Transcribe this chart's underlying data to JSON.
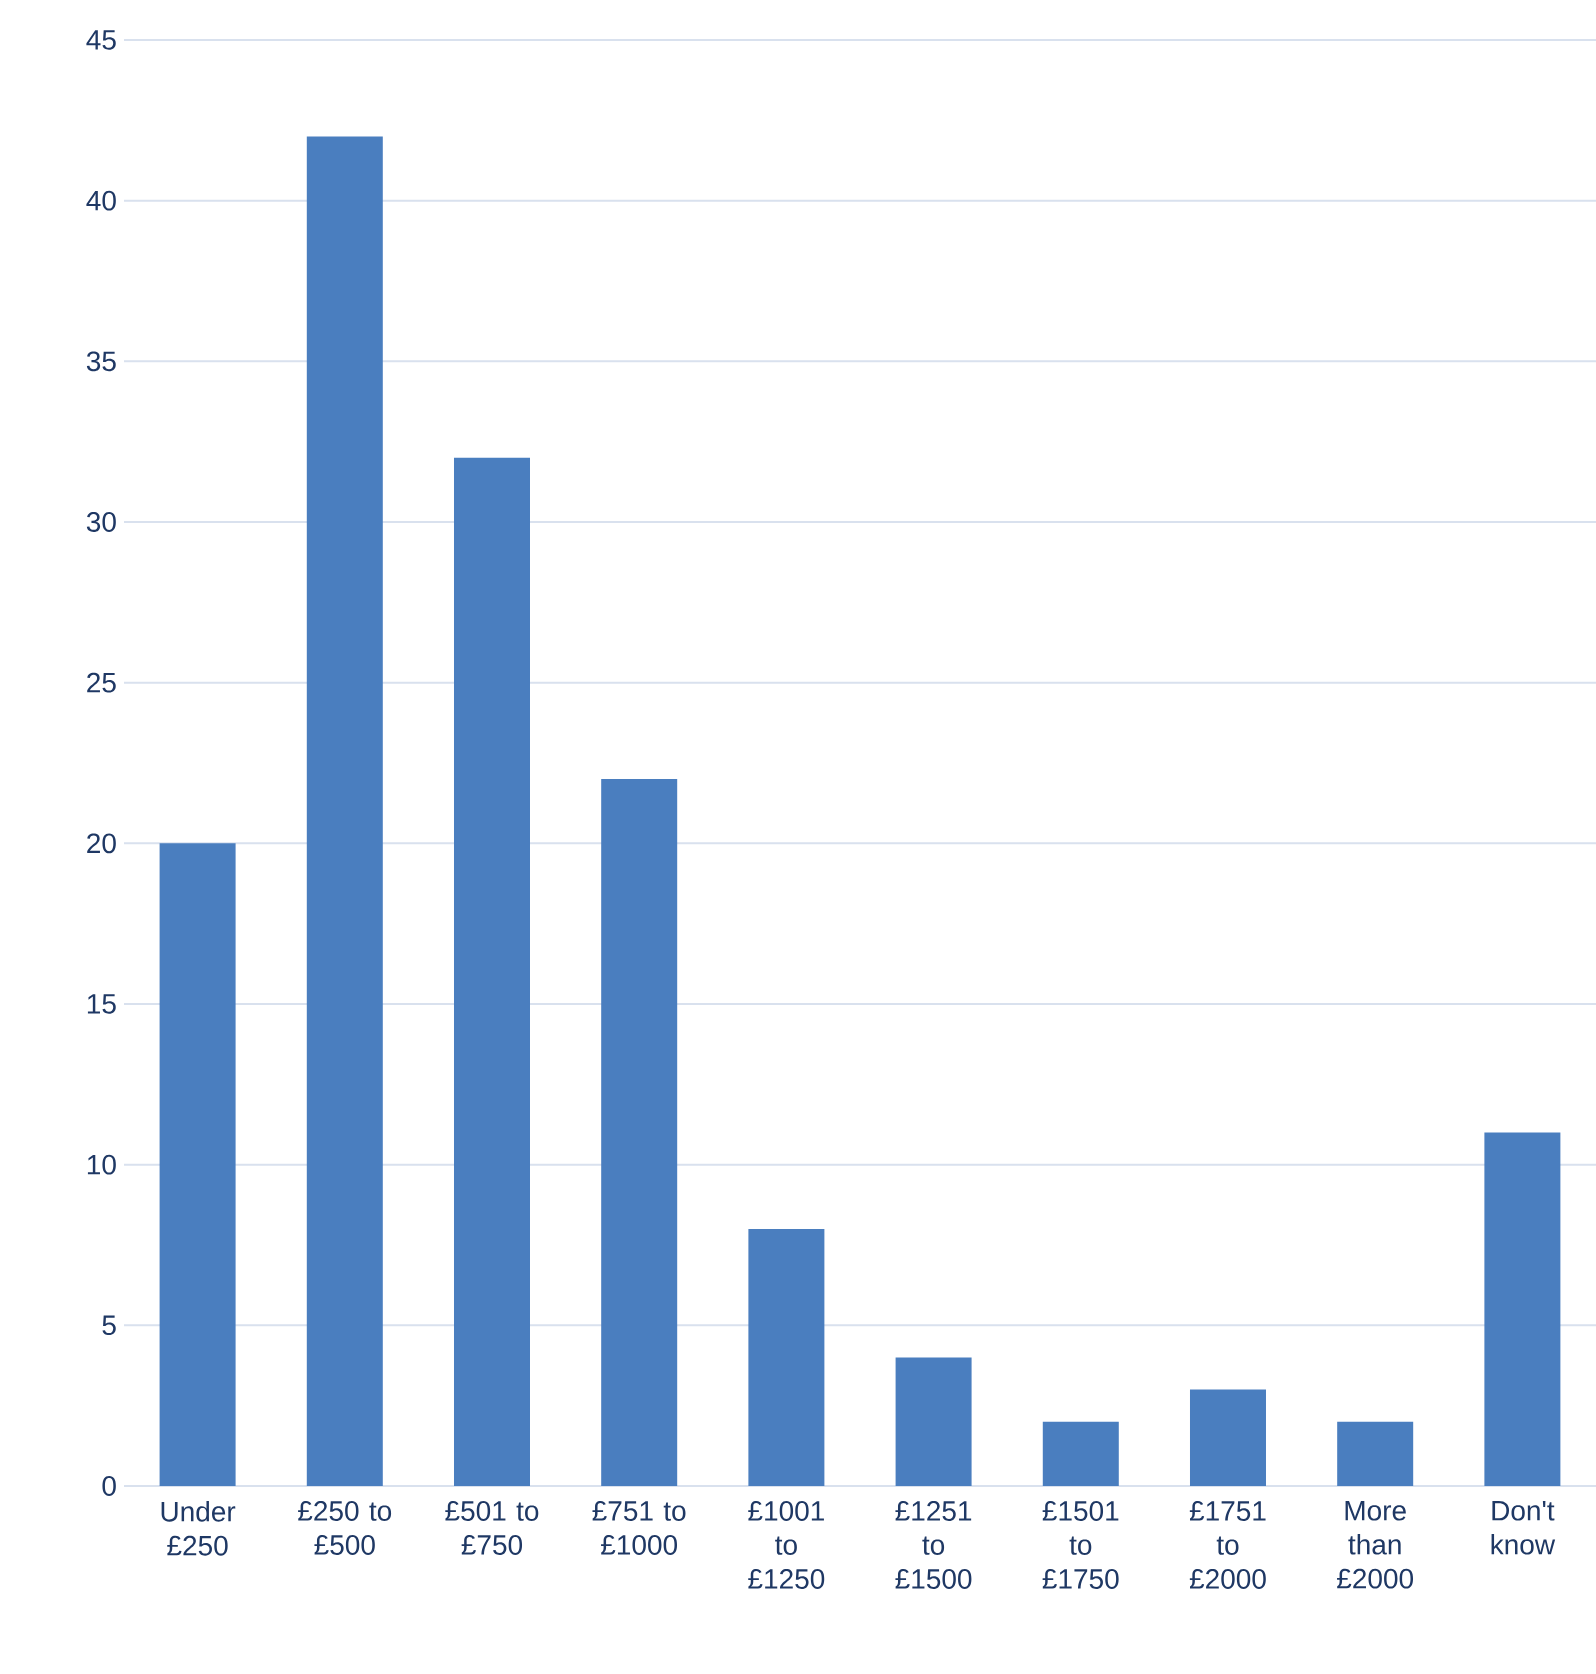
{
  "chart_data": {
    "type": "bar",
    "categories": [
      "Under £250",
      "£250 to £500",
      "£501 to £750",
      "£751 to £1000",
      "£1001 to £1250",
      "£1251 to £1500",
      "£1501 to £1750",
      "£1751 to £2000",
      "More than £2000",
      "Don't know"
    ],
    "values": [
      20,
      42,
      32,
      22,
      8,
      4,
      2,
      3,
      2,
      11
    ],
    "color": "#4a7ebf",
    "ylim": [
      0,
      45
    ],
    "yticks": [
      0,
      5,
      10,
      15,
      20,
      25,
      30,
      35,
      40,
      45
    ],
    "grid": "y"
  }
}
